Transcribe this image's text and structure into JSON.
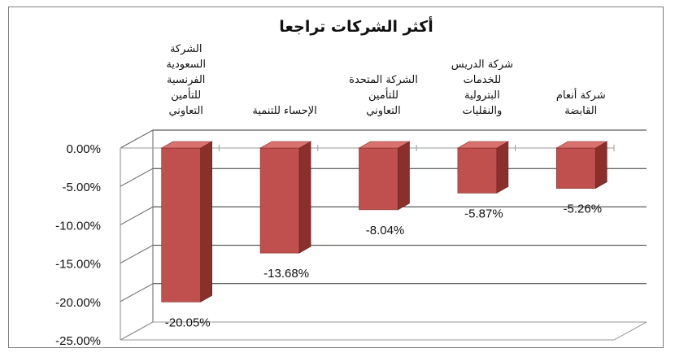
{
  "chart_data": {
    "type": "bar",
    "title": "أكثر الشركات تراجعا",
    "categories": [
      "الشركة السعودية الفرنسية للتأمين التعاوني",
      "الإحساء للتنمية",
      "الشركة المتحدة للتأمين التعاوني",
      "شركة الدريس للخدمات البترولية والنقليات",
      "شركة أنعام القابضة"
    ],
    "category_lines": [
      [
        "الشركة",
        "السعودية",
        "الفرنسية",
        "للتأمين",
        "التعاوني"
      ],
      [
        "الإحساء للتنمية"
      ],
      [
        "الشركة المتحدة",
        "للتأمين",
        "التعاوني"
      ],
      [
        "شركة الدريس",
        "للخدمات",
        "البترولية",
        "والنقليات"
      ],
      [
        "شركة أنعام",
        "القابضة"
      ]
    ],
    "values": [
      -20.05,
      -13.68,
      -8.04,
      -5.87,
      -5.26
    ],
    "data_labels": [
      "-20.05%",
      "-13.68%",
      "-8.04%",
      "-5.87%",
      "-5.26%"
    ],
    "y_ticks": [
      "0.00%",
      "-5.00%",
      "-10.00%",
      "-15.00%",
      "-20.00%",
      "-25.00%"
    ],
    "ylim": [
      -25,
      0
    ],
    "xlabel": "",
    "ylabel": "",
    "grid": true,
    "style": "3d-column",
    "colors": {
      "bar_front": "#c0504d",
      "bar_side": "#8b2f2c",
      "bar_top": "#d9726f",
      "grid": "#333333"
    }
  }
}
